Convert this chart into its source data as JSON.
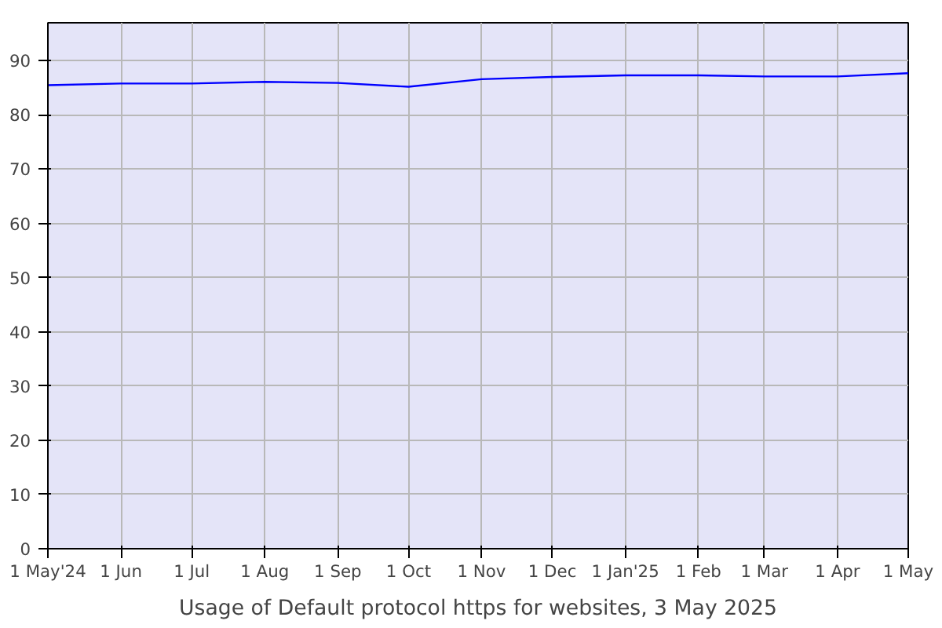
{
  "chart_data": {
    "type": "line",
    "title": "Usage of Default protocol https for websites, 3 May 2025",
    "x": [
      "2024-05-01",
      "2024-06-01",
      "2024-07-01",
      "2024-08-01",
      "2024-09-01",
      "2024-10-01",
      "2024-11-01",
      "2024-12-01",
      "2025-01-01",
      "2025-02-01",
      "2025-03-01",
      "2025-04-01",
      "2025-05-01"
    ],
    "series": [
      {
        "color": "#0000ff",
        "values": [
          85.5,
          85.8,
          85.8,
          86.1,
          85.9,
          85.2,
          86.6,
          87.0,
          87.3,
          87.3,
          87.1,
          87.1,
          87.7
        ]
      }
    ],
    "xlim": [
      "2024-05-01",
      "2025-05-01"
    ],
    "xticks": [
      {
        "value": "2024-05-01",
        "label": "1 May'24"
      },
      {
        "value": "2024-06-01",
        "label": "1 Jun"
      },
      {
        "value": "2024-07-01",
        "label": "1 Jul"
      },
      {
        "value": "2024-08-01",
        "label": "1 Aug"
      },
      {
        "value": "2024-09-01",
        "label": "1 Sep"
      },
      {
        "value": "2024-10-01",
        "label": "1 Oct"
      },
      {
        "value": "2024-11-01",
        "label": "1 Nov"
      },
      {
        "value": "2024-12-01",
        "label": "1 Dec"
      },
      {
        "value": "2025-01-01",
        "label": "1 Jan'25"
      },
      {
        "value": "2025-02-01",
        "label": "1 Feb"
      },
      {
        "value": "2025-03-01",
        "label": "1 Mar"
      },
      {
        "value": "2025-04-01",
        "label": "1 Apr"
      },
      {
        "value": "2025-05-01",
        "label": "1 May"
      }
    ],
    "ylim": [
      0,
      97
    ],
    "yticks": [
      0,
      10,
      20,
      30,
      40,
      50,
      60,
      70,
      80,
      90
    ],
    "grid": true,
    "marker": "none",
    "line_style": "solid"
  }
}
